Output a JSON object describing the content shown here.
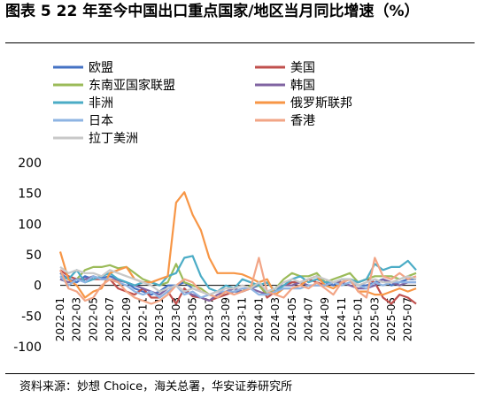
{
  "title": "图表 5 22 年至今中国出口重点国家/地区当月同比增速（%）",
  "source": "资料来源：妙想 Choice，海关总署，华安证券研究所",
  "chart_data": {
    "type": "line",
    "ylim": [
      -100,
      200
    ],
    "yticks": [
      -100,
      -50,
      0,
      50,
      100,
      150,
      200
    ],
    "x": [
      "2022-01",
      "2022-02",
      "2022-03",
      "2022-04",
      "2022-05",
      "2022-06",
      "2022-07",
      "2022-08",
      "2022-09",
      "2022-10",
      "2022-11",
      "2022-12",
      "2023-01",
      "2023-02",
      "2023-03",
      "2023-04",
      "2023-05",
      "2023-06",
      "2023-07",
      "2023-08",
      "2023-09",
      "2023-10",
      "2023-11",
      "2023-12",
      "2024-01",
      "2024-02",
      "2024-03",
      "2024-04",
      "2024-05",
      "2024-06",
      "2024-07",
      "2024-08",
      "2024-09",
      "2024-10",
      "2024-11",
      "2024-12",
      "2025-01",
      "2025-02",
      "2025-03",
      "2025-04",
      "2025-05",
      "2025-06",
      "2025-07",
      "2025-08"
    ],
    "xticklabels": [
      "2022-01",
      "2022-03",
      "2022-05",
      "2022-07",
      "2022-09",
      "2022-11",
      "2023-01",
      "2023-03",
      "2023-05",
      "2023-07",
      "2023-09",
      "2023-11",
      "2024-01",
      "2024-03",
      "2024-05",
      "2024-07",
      "2024-09",
      "2024-11",
      "2025-01",
      "2025-03",
      "2025-05",
      "2025-07"
    ],
    "grid": false,
    "legend_position": "top",
    "series": [
      {
        "name": "欧盟",
        "color": "#4472C4",
        "values": [
          20,
          10,
          5,
          15,
          10,
          12,
          15,
          10,
          5,
          -5,
          -10,
          -15,
          -10,
          0,
          0,
          5,
          -5,
          -10,
          -15,
          -20,
          -15,
          -10,
          -10,
          -5,
          0,
          -10,
          -5,
          0,
          5,
          5,
          10,
          15,
          5,
          0,
          10,
          10,
          0,
          0,
          5,
          10,
          0,
          5,
          10,
          10
        ]
      },
      {
        "name": "美国",
        "color": "#C0504D",
        "values": [
          25,
          15,
          10,
          10,
          10,
          10,
          10,
          -5,
          -10,
          -15,
          -5,
          -20,
          -20,
          -10,
          -30,
          -5,
          -18,
          -20,
          -25,
          -20,
          -15,
          -10,
          -5,
          -5,
          5,
          -20,
          -10,
          0,
          5,
          5,
          10,
          5,
          0,
          5,
          5,
          10,
          5,
          10,
          5,
          -20,
          -30,
          -15,
          -20,
          -30
        ]
      },
      {
        "name": "东南亚国家联盟",
        "color": "#9BBB59",
        "values": [
          10,
          5,
          10,
          25,
          30,
          30,
          33,
          28,
          30,
          20,
          10,
          5,
          0,
          5,
          35,
          5,
          0,
          -5,
          -15,
          -20,
          -10,
          -5,
          -10,
          0,
          0,
          -15,
          -5,
          10,
          20,
          15,
          15,
          20,
          5,
          10,
          15,
          20,
          5,
          10,
          15,
          15,
          15,
          10,
          15,
          20
        ]
      },
      {
        "name": "韩国",
        "color": "#8064A2",
        "values": [
          10,
          5,
          10,
          10,
          15,
          10,
          10,
          8,
          5,
          0,
          -5,
          -10,
          -15,
          -5,
          0,
          -10,
          -15,
          -20,
          -25,
          -15,
          -10,
          -5,
          -10,
          -5,
          -10,
          -15,
          -10,
          0,
          0,
          5,
          0,
          0,
          0,
          5,
          5,
          0,
          -5,
          -5,
          0,
          10,
          5,
          0,
          5,
          5
        ]
      },
      {
        "name": "非洲",
        "color": "#4BACC6",
        "values": [
          15,
          10,
          25,
          5,
          10,
          15,
          20,
          10,
          5,
          0,
          5,
          5,
          0,
          15,
          20,
          45,
          48,
          15,
          -5,
          -10,
          0,
          -5,
          10,
          5,
          0,
          5,
          -10,
          0,
          10,
          15,
          5,
          10,
          5,
          5,
          10,
          10,
          5,
          10,
          35,
          25,
          30,
          30,
          40,
          25
        ]
      },
      {
        "name": "俄罗斯联邦",
        "color": "#F79646",
        "values": [
          55,
          10,
          0,
          -20,
          -10,
          -5,
          20,
          25,
          30,
          10,
          5,
          5,
          10,
          15,
          135,
          152,
          115,
          90,
          45,
          20,
          20,
          20,
          18,
          12,
          5,
          10,
          -15,
          -5,
          -5,
          0,
          10,
          15,
          0,
          -5,
          5,
          10,
          -10,
          -10,
          -15,
          -15,
          -10,
          -5,
          -10,
          -5
        ]
      },
      {
        "name": "日本",
        "color": "#8EB4E3",
        "values": [
          15,
          0,
          10,
          5,
          15,
          10,
          10,
          5,
          0,
          -10,
          -15,
          -10,
          -20,
          -10,
          0,
          -15,
          -10,
          -20,
          -15,
          -10,
          -10,
          -10,
          -5,
          -5,
          -15,
          -15,
          -10,
          -5,
          -5,
          -5,
          0,
          0,
          0,
          5,
          0,
          5,
          0,
          -5,
          5,
          0,
          5,
          5,
          5,
          5
        ]
      },
      {
        "name": "香港",
        "color": "#F2A586",
        "values": [
          25,
          -5,
          -10,
          -25,
          -20,
          0,
          10,
          5,
          -10,
          -20,
          -25,
          -30,
          -25,
          -15,
          0,
          10,
          5,
          -10,
          -15,
          -20,
          -10,
          -15,
          -10,
          -5,
          45,
          -10,
          -15,
          -20,
          -5,
          0,
          -5,
          5,
          -5,
          -15,
          5,
          10,
          -10,
          -20,
          45,
          15,
          10,
          20,
          10,
          15
        ]
      },
      {
        "name": "拉丁美洲",
        "color": "#C8C8C8",
        "values": [
          30,
          20,
          25,
          20,
          20,
          15,
          25,
          20,
          15,
          10,
          5,
          0,
          -10,
          -5,
          0,
          -10,
          -5,
          -10,
          -15,
          -10,
          -5,
          -5,
          0,
          -5,
          5,
          -10,
          -5,
          5,
          10,
          5,
          10,
          15,
          10,
          5,
          10,
          10,
          0,
          5,
          10,
          5,
          5,
          10,
          15,
          10
        ]
      }
    ]
  }
}
